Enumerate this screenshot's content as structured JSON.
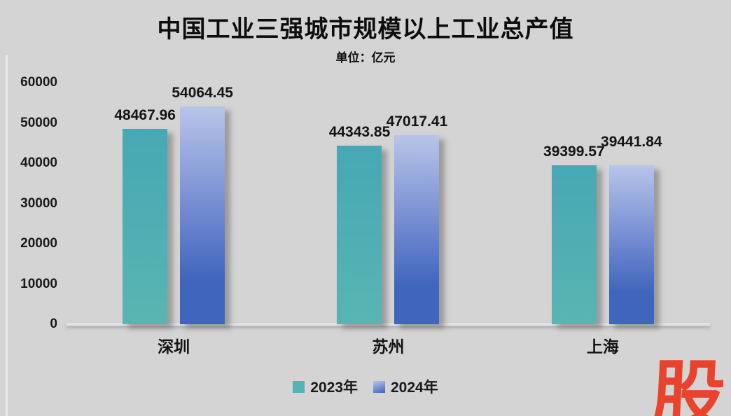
{
  "title": "中国工业三强城市规模以上工业总产值",
  "subtitle": "单位：亿元",
  "legend": {
    "position": "bottom",
    "items": [
      {
        "label": "2023年",
        "color": "#55B2B5"
      },
      {
        "label": "2024年",
        "gradient": [
          "#B8C5E9",
          "#4065BC"
        ]
      }
    ]
  },
  "watermark": {
    "text": "股",
    "color": "#E8432C"
  },
  "colors": {
    "background": "#D4D4D4",
    "text": "#1A1A1A",
    "axis_line": "#E1E2E6",
    "bar_2023_top": "#47A8B5",
    "bar_2023_bottom": "#58B5B1",
    "bar_2024_top": "#B8C5E9",
    "bar_2024_mid": "#6E87D0",
    "bar_2024_bottom": "#4065BC"
  },
  "chart_data": {
    "type": "bar",
    "title": "中国工业三强城市规模以上工业总产值",
    "unit_label": "单位：亿元",
    "categories": [
      "深圳",
      "苏州",
      "上海"
    ],
    "series": [
      {
        "name": "2023年",
        "values": [
          48467.96,
          44343.85,
          39399.57
        ]
      },
      {
        "name": "2024年",
        "values": [
          54064.45,
          47017.41,
          39441.84
        ]
      }
    ],
    "ylim": [
      0,
      60000
    ],
    "yticks": [
      0,
      10000,
      20000,
      30000,
      40000,
      50000,
      60000
    ],
    "grid": false,
    "legend_position": "bottom",
    "value_labels": true,
    "value_label_decimals": 2
  }
}
